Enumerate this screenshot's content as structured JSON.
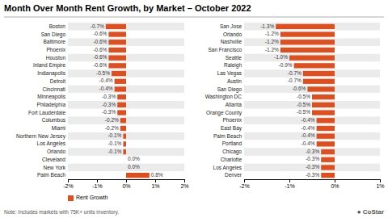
{
  "chart_data": [
    {
      "type": "bar",
      "orientation": "horizontal",
      "title": "Month Over Month Rent Growth, by Market – October 2022",
      "categories": [
        "Boston",
        "San Diego",
        "Baltimore",
        "Phoenix",
        "Houston",
        "Inland Empire",
        "Indianapolis",
        "Detroit",
        "Cincinnati",
        "Minneapolis",
        "Philadelphia",
        "Fort Lauderdale",
        "Columbus",
        "Miami",
        "Northern New Jersey",
        "Los Angeles",
        "Orlando",
        "Cleveland",
        "New York",
        "Palm Beach"
      ],
      "series": [
        {
          "name": "Rent Growth",
          "color": "#e04e1e",
          "values": [
            -0.7,
            -0.6,
            -0.6,
            -0.6,
            -0.6,
            -0.6,
            -0.5,
            -0.4,
            -0.4,
            -0.3,
            -0.3,
            -0.3,
            -0.2,
            -0.2,
            -0.1,
            -0.1,
            -0.1,
            0.0,
            0.0,
            0.8
          ],
          "value_labels": [
            "-0.7%",
            "-0.6%",
            "-0.6%",
            "-0.6%",
            "-0.6%",
            "-0.6%",
            "-0.5%",
            "-0.4%",
            "-0.4%",
            "-0.3%",
            "-0.3%",
            "-0.3%",
            "-0.2%",
            "-0.2%",
            "-0.1%",
            "-0.1%",
            "-0.1%",
            "0.0%",
            "0.0%",
            "0.8%"
          ]
        }
      ],
      "xlim": [
        -2.0,
        2.0
      ],
      "xticks": [
        {
          "value": -2,
          "label": "-2%"
        },
        {
          "value": -1,
          "label": "-1%"
        },
        {
          "value": 0,
          "label": "0%"
        },
        {
          "value": 1,
          "label": "1%"
        },
        {
          "value": 2,
          "label": "2%"
        }
      ],
      "data_labels": true,
      "grid": false,
      "legend": "lower left",
      "annotations": [
        "Note: Includes markets with 75K+ units inventory.",
        "● CoStar"
      ]
    },
    {
      "type": "bar",
      "orientation": "horizontal",
      "categories": [
        "San Jose",
        "Orlando",
        "Nashville",
        "San Francisco",
        "Seattle",
        "Raleigh",
        "Las Vegas",
        "Austin",
        "San Diego",
        "Washington DC",
        "Atlanta",
        "Orange County",
        "Phoenix",
        "East Bay",
        "Palm Beach",
        "Portland",
        "Chicago",
        "Charlotte",
        "Los Angeles",
        "Denver"
      ],
      "values": [
        -1.3,
        -1.2,
        -1.2,
        -1.2,
        -1.0,
        -0.9,
        -0.7,
        -0.7,
        -0.6,
        -0.5,
        -0.5,
        -0.5,
        -0.4,
        -0.4,
        -0.4,
        -0.4,
        -0.3,
        -0.3,
        -0.3,
        -0.3
      ],
      "value_labels": [
        "-1.3%",
        "-1.2%",
        "-1.2%",
        "-1.2%",
        "-1.0%",
        "-0.9%",
        "-0.7%",
        "-0.7%",
        "-0.6%",
        "-0.5%",
        "-0.5%",
        "-0.5%",
        "-0.4%",
        "-0.4%",
        "-0.4%",
        "-0.4%",
        "-0.3%",
        "-0.3%",
        "-0.3%",
        "-0.3%"
      ],
      "color": "#e04e1e",
      "xlim": [
        -2.0,
        1.0
      ],
      "xticks": [
        {
          "value": -2,
          "label": "-2%"
        },
        {
          "value": -1,
          "label": "-1%"
        },
        {
          "value": 0,
          "label": "0%"
        },
        {
          "value": 1,
          "label": "1%"
        }
      ],
      "data_labels": true,
      "grid": false
    }
  ]
}
